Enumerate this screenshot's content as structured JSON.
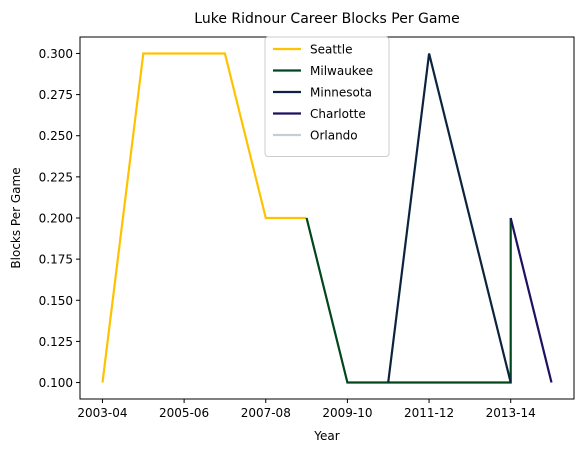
{
  "chart_data": {
    "type": "line",
    "title": "Luke Ridnour Career Blocks Per Game",
    "xlabel": "Year",
    "ylabel": "Blocks Per Game",
    "x_categories": [
      "2003-04",
      "2004-05",
      "2005-06",
      "2006-07",
      "2007-08",
      "2008-09",
      "2009-10",
      "2010-11",
      "2011-12",
      "2012-13",
      "2013-14",
      "2014-15"
    ],
    "x_tick_labels": [
      "2003-04",
      "2005-06",
      "2007-08",
      "2009-10",
      "2011-12",
      "2013-14"
    ],
    "ylim": [
      0.09,
      0.31
    ],
    "y_ticks": [
      0.1,
      0.125,
      0.15,
      0.175,
      0.2,
      0.225,
      0.25,
      0.275,
      0.3
    ],
    "y_tick_labels": [
      "0.100",
      "0.125",
      "0.150",
      "0.175",
      "0.200",
      "0.225",
      "0.250",
      "0.275",
      "0.300"
    ],
    "grid": false,
    "legend_position": "top-center",
    "series": [
      {
        "name": "Seattle",
        "color": "#FFC200",
        "points": [
          [
            "2003-04",
            0.1
          ],
          [
            "2004-05",
            0.3
          ],
          [
            "2005-06",
            0.3
          ],
          [
            "2006-07",
            0.3
          ],
          [
            "2007-08",
            0.2
          ],
          [
            "2008-09",
            0.2
          ]
        ]
      },
      {
        "name": "Milwaukee",
        "color": "#00471B",
        "points": [
          [
            "2008-09",
            0.2
          ],
          [
            "2009-10",
            0.1
          ],
          [
            "2010-11",
            0.1
          ],
          [
            "2013-14",
            0.1
          ],
          [
            "2013-14",
            0.2
          ]
        ]
      },
      {
        "name": "Minnesota",
        "color": "#0C2340",
        "points": [
          [
            "2010-11",
            0.1
          ],
          [
            "2011-12",
            0.3
          ],
          [
            "2013-14",
            0.1
          ]
        ]
      },
      {
        "name": "Charlotte",
        "color": "#1D1160",
        "points": [
          [
            "2013-14",
            0.2
          ],
          [
            "2014-15",
            0.1
          ]
        ]
      },
      {
        "name": "Orlando",
        "color": "#C4CED4",
        "points": [
          [
            "2014-15",
            0.1
          ]
        ]
      }
    ]
  }
}
